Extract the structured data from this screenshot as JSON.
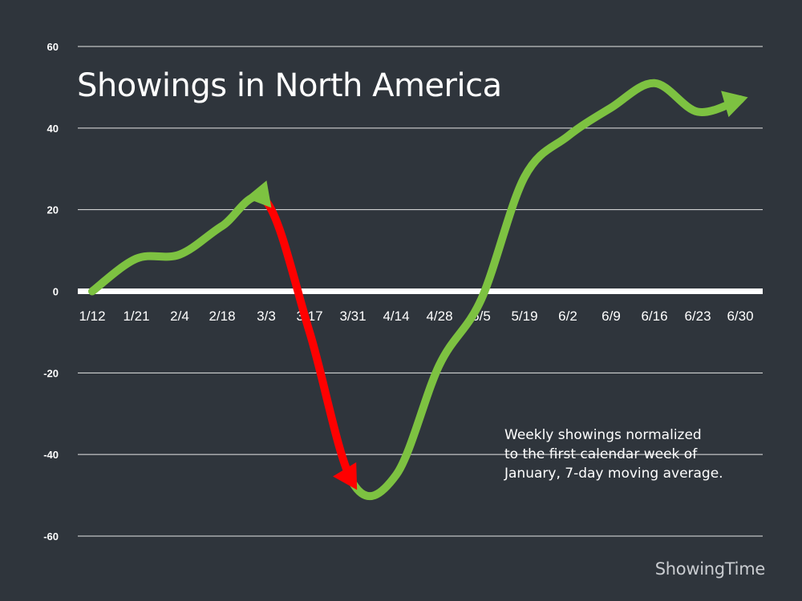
{
  "colors": {
    "background": "#2f353c",
    "gridline": "#e6e6e6",
    "zero_line": "#ffffff",
    "up_trend": "#7dc241",
    "down_trend": "#ff0000",
    "text": "#ffffff",
    "brand": "#c9ccd0"
  },
  "chart_data": {
    "type": "line",
    "title": "Showings in North America",
    "xlabel": "",
    "ylabel": "",
    "categories": [
      "1/12",
      "1/21",
      "2/4",
      "2/18",
      "3/3",
      "3/17",
      "3/31",
      "4/14",
      "4/28",
      "5/5",
      "5/19",
      "6/2",
      "6/9",
      "6/16",
      "6/23",
      "6/30"
    ],
    "y_ticks": [
      "60",
      "40",
      "20",
      "0",
      "-20",
      "-40",
      "-60"
    ],
    "ylim": [
      -60,
      60
    ],
    "grid": true,
    "series": [
      {
        "values": [
          0,
          8,
          9,
          16,
          22,
          -10,
          -47,
          -45,
          -18,
          -2,
          28,
          38,
          45,
          51,
          44,
          47
        ]
      }
    ],
    "segment_colors": [
      "up_trend",
      "up_trend",
      "up_trend",
      "up_trend",
      "down_trend",
      "down_trend",
      "up_trend",
      "up_trend",
      "up_trend",
      "up_trend",
      "up_trend",
      "up_trend",
      "up_trend",
      "up_trend",
      "up_trend"
    ],
    "annotation": [
      "Weekly showings normalized",
      "to the first calendar week of",
      "January, 7-day moving average."
    ]
  },
  "brand": "ShowingTime"
}
